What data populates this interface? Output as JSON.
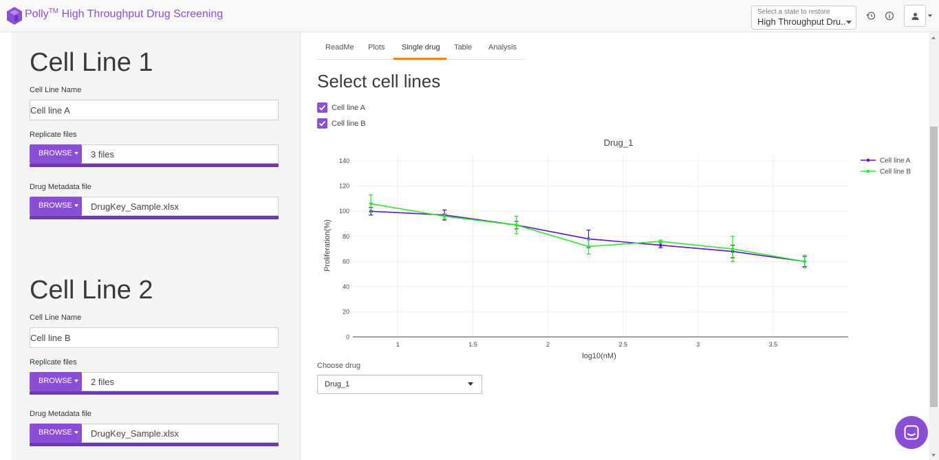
{
  "header": {
    "brand": "Polly",
    "trademark": "TM",
    "app_name": "High Throughput Drug Screening",
    "restore_label": "Select a state to restore",
    "restore_value": "High Throughput Dru..."
  },
  "sidebar": {
    "cell_line_1": {
      "title": "Cell Line 1",
      "name_label": "Cell Line Name",
      "name_value": "Cell line A",
      "replicate_label": "Replicate files",
      "replicate_button": "BROWSE",
      "replicate_value": "3 files",
      "metadata_label": "Drug Metadata file",
      "metadata_button": "BROWSE",
      "metadata_value": "DrugKey_Sample.xlsx"
    },
    "cell_line_2": {
      "title": "Cell Line 2",
      "name_label": "Cell Line Name",
      "name_value": "Cell line B",
      "replicate_label": "Replicate files",
      "replicate_button": "BROWSE",
      "replicate_value": "2 files",
      "metadata_label": "Drug Metadata file",
      "metadata_button": "BROWSE",
      "metadata_value": "DrugKey_Sample.xlsx"
    }
  },
  "tabs": [
    {
      "label": "ReadMe",
      "active": false
    },
    {
      "label": "Plots",
      "active": false
    },
    {
      "label": "Single drug",
      "active": true
    },
    {
      "label": "Table",
      "active": false
    },
    {
      "label": "Analysis",
      "active": false
    }
  ],
  "main": {
    "title": "Select cell lines",
    "checkboxes": [
      {
        "label": "Cell line A",
        "checked": true
      },
      {
        "label": "Cell line B",
        "checked": true
      }
    ],
    "choose_drug_label": "Choose drug",
    "drug_selected": "Drug_1"
  },
  "colors": {
    "accent": "#8a4fd6",
    "tab_active": "#f07c20",
    "series_a": "#5b0fd6",
    "series_b": "#2ee82e"
  },
  "icons": [
    "logo-icon",
    "history-icon",
    "info-icon",
    "user-icon",
    "chat-icon"
  ],
  "chart_data": {
    "type": "line",
    "title": "Drug_1",
    "xlabel": "log10(nM)",
    "ylabel": "Proliferation(%)",
    "xlim": [
      0.7,
      4.0
    ],
    "ylim": [
      0,
      145
    ],
    "x_ticks": [
      1,
      1.5,
      2,
      2.5,
      3,
      3.5
    ],
    "x_tick_labels": [
      "1",
      "1.5",
      "2",
      "2.5",
      "3",
      "3.5"
    ],
    "y_ticks": [
      0,
      20,
      40,
      60,
      80,
      100,
      120,
      140
    ],
    "y_tick_labels": [
      "0",
      "20",
      "40",
      "60",
      "80",
      "100",
      "120",
      "140"
    ],
    "grid": true,
    "legend_position": "top-right",
    "series": [
      {
        "name": "Cell line A",
        "color": "#5b0fd6",
        "x": [
          0.82,
          1.31,
          1.79,
          2.27,
          2.75,
          3.23,
          3.71
        ],
        "y": [
          100,
          97,
          89,
          78,
          73,
          68,
          60
        ],
        "err": [
          3,
          4,
          3,
          7,
          2,
          5,
          4
        ]
      },
      {
        "name": "Cell line B",
        "color": "#2ee82e",
        "x": [
          0.82,
          1.31,
          1.79,
          2.27,
          2.75,
          3.23,
          3.71
        ],
        "y": [
          106,
          96,
          89,
          72,
          76,
          70,
          60
        ],
        "err": [
          7,
          2,
          7,
          6,
          1,
          10,
          5
        ]
      }
    ]
  }
}
